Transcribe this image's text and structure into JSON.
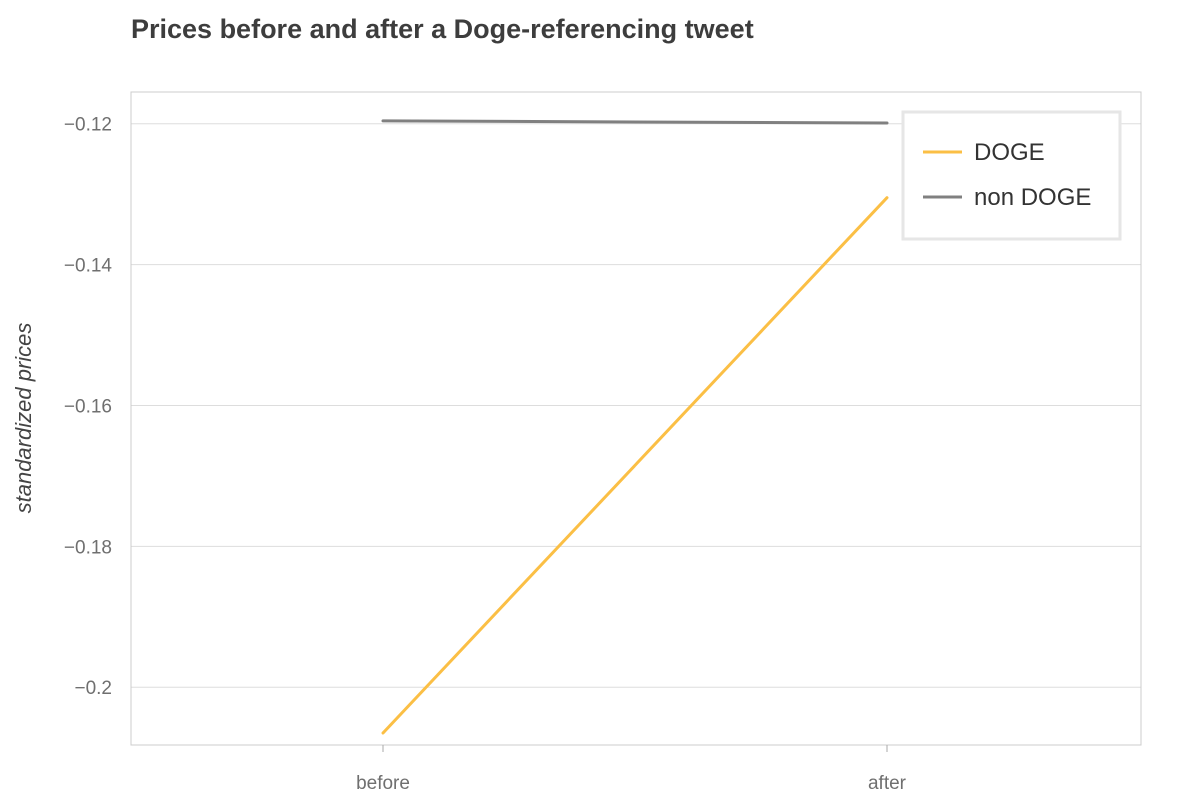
{
  "chart_data": {
    "type": "line",
    "title": "Prices before and after a Doge-referencing tweet",
    "xlabel": "",
    "ylabel": "standardized prices",
    "categories": [
      "before",
      "after"
    ],
    "ylim": [
      -0.2065,
      -0.1155
    ],
    "yticks": [
      -0.12,
      -0.14,
      -0.16,
      -0.18,
      -0.2
    ],
    "ytick_labels": [
      "−0.12",
      "−0.14",
      "−0.16",
      "−0.18",
      "−0.2"
    ],
    "grid": true,
    "legend_position": "top-right",
    "series": [
      {
        "name": "DOGE",
        "color": "#fbbf45",
        "values": [
          -0.2065,
          -0.1305
        ]
      },
      {
        "name": "non DOGE",
        "color": "#808080",
        "values": [
          -0.1196,
          -0.1199
        ]
      }
    ]
  }
}
